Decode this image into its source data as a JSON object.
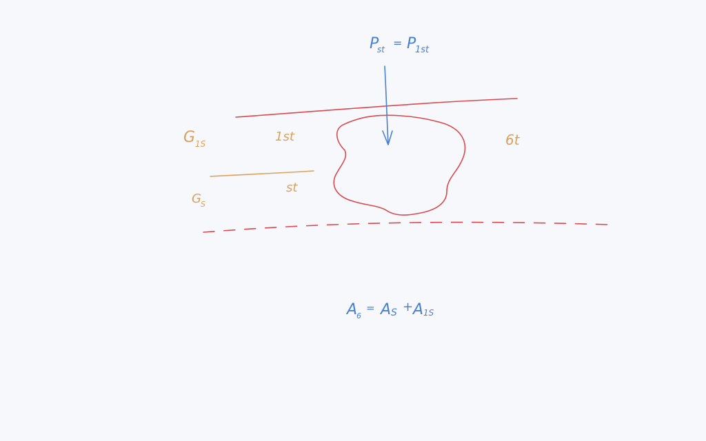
{
  "colors": {
    "background": "#f7f8fc",
    "red_ink": "#d9484f",
    "orange_ink": "#d9a15c",
    "blue_ink": "#4a7fd0"
  },
  "equations": {
    "top": {
      "lhs_base": "P",
      "lhs_sub": "st",
      "equals": "=",
      "rhs_base": "P",
      "rhs_sub": "1st"
    },
    "bottom": {
      "lhs_base": "A",
      "lhs_sub": "6",
      "equals": "=",
      "mid_base": "A",
      "mid_sub": "S",
      "plus": "+",
      "rhs_base": "A",
      "rhs_sub": "1S"
    }
  },
  "labels": {
    "g15_base": "G",
    "g15_sub": "1S",
    "g5_base": "G",
    "g5_sub": "S",
    "layer_1st": "1st",
    "layer_st": "st",
    "layer_6t": "6t"
  }
}
